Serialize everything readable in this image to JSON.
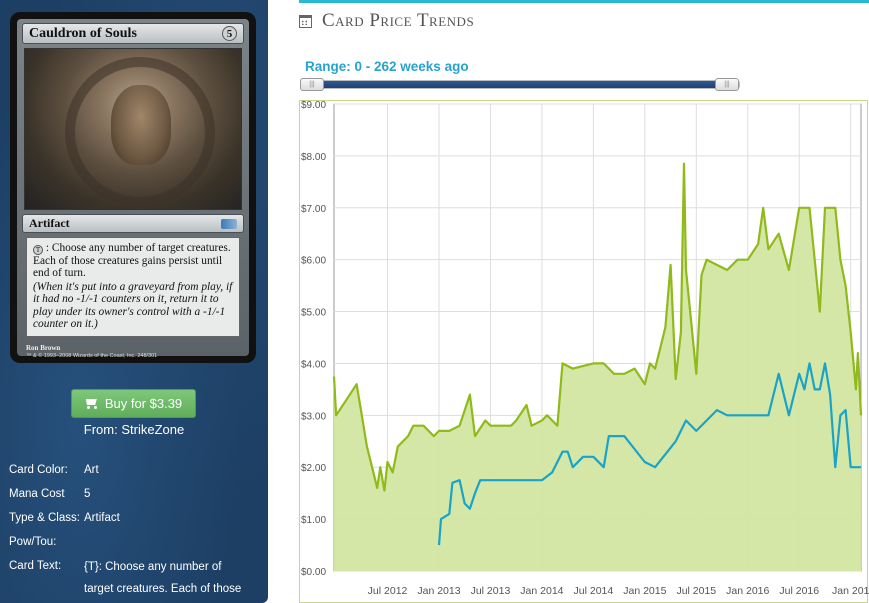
{
  "card": {
    "name": "Cauldron of Souls",
    "mana_cost": "5",
    "type_line": "Artifact",
    "rules_text": ": Choose any number of target creatures. Each of those creatures gains persist until end of turn.",
    "reminder_text": "(When it's put into a graveyard from play, if it had no -1/-1 counters on it, return it to play under its owner's control with a -1/-1 counter on it.)",
    "artist": "Ron Brown",
    "copyright": "™ & © 1993–2008 Wizards of the Coast, Inc. 248/301",
    "tap_symbol": "T"
  },
  "buy": {
    "label": "Buy for $3.39",
    "from": "From: StrikeZone"
  },
  "details": [
    {
      "key": "Card Color:",
      "value": "Art"
    },
    {
      "key": "Mana Cost",
      "value": "5"
    },
    {
      "key": "Type & Class:",
      "value": "Artifact"
    },
    {
      "key": "Pow/Tou:",
      "value": ""
    },
    {
      "key": "Card Text:",
      "value": "{T}: Choose any number of target creatures. Each of those"
    }
  ],
  "trends": {
    "title": "Card Price Trends",
    "range_label": "Range: 0 - 262 weeks ago",
    "range": [
      0,
      262
    ],
    "accent_color": "#27b8d6"
  },
  "chart_data": {
    "type": "line",
    "title": "",
    "ylim": [
      0,
      9
    ],
    "y_ticks": [
      "$0.00",
      "$1.00",
      "$2.00",
      "$3.00",
      "$4.00",
      "$5.00",
      "$6.00",
      "$7.00",
      "$8.00",
      "$9.00"
    ],
    "x_ticks": [
      "Jul 2012",
      "Jan 2013",
      "Jul 2013",
      "Jan 2014",
      "Jul 2014",
      "Jan 2015",
      "Jul 2015",
      "Jan 2016",
      "Jul 2016",
      "Jan 201"
    ],
    "x_tick_values": [
      2012.5,
      2013.0,
      2013.5,
      2014.0,
      2014.5,
      2015.0,
      2015.5,
      2016.0,
      2016.5,
      2017.0
    ],
    "xlim": [
      2011.98,
      2017.1
    ],
    "grid": true,
    "series": [
      {
        "color": "#8fba1a",
        "fill": "#d3e6a1",
        "points": [
          [
            2011.98,
            3.75
          ],
          [
            2012.0,
            3.0
          ],
          [
            2012.1,
            3.3
          ],
          [
            2012.2,
            3.6
          ],
          [
            2012.25,
            3.0
          ],
          [
            2012.3,
            2.4
          ],
          [
            2012.35,
            2.0
          ],
          [
            2012.4,
            1.6
          ],
          [
            2012.43,
            2.0
          ],
          [
            2012.47,
            1.55
          ],
          [
            2012.5,
            2.1
          ],
          [
            2012.55,
            1.9
          ],
          [
            2012.6,
            2.4
          ],
          [
            2012.7,
            2.6
          ],
          [
            2012.75,
            2.8
          ],
          [
            2012.85,
            2.8
          ],
          [
            2012.95,
            2.6
          ],
          [
            2013.0,
            2.7
          ],
          [
            2013.1,
            2.7
          ],
          [
            2013.2,
            2.8
          ],
          [
            2013.3,
            3.4
          ],
          [
            2013.35,
            2.6
          ],
          [
            2013.45,
            2.9
          ],
          [
            2013.5,
            2.8
          ],
          [
            2013.7,
            2.8
          ],
          [
            2013.75,
            2.9
          ],
          [
            2013.85,
            3.2
          ],
          [
            2013.9,
            2.8
          ],
          [
            2014.0,
            2.9
          ],
          [
            2014.05,
            3.0
          ],
          [
            2014.1,
            2.9
          ],
          [
            2014.15,
            2.8
          ],
          [
            2014.2,
            4.0
          ],
          [
            2014.3,
            3.9
          ],
          [
            2014.5,
            4.0
          ],
          [
            2014.6,
            4.0
          ],
          [
            2014.7,
            3.8
          ],
          [
            2014.8,
            3.8
          ],
          [
            2014.9,
            3.9
          ],
          [
            2015.0,
            3.6
          ],
          [
            2015.05,
            4.0
          ],
          [
            2015.1,
            3.9
          ],
          [
            2015.15,
            4.3
          ],
          [
            2015.2,
            4.7
          ],
          [
            2015.25,
            5.9
          ],
          [
            2015.3,
            3.7
          ],
          [
            2015.35,
            4.6
          ],
          [
            2015.38,
            7.85
          ],
          [
            2015.4,
            5.8
          ],
          [
            2015.45,
            4.8
          ],
          [
            2015.5,
            3.8
          ],
          [
            2015.55,
            5.7
          ],
          [
            2015.6,
            6.0
          ],
          [
            2015.7,
            5.9
          ],
          [
            2015.8,
            5.8
          ],
          [
            2015.9,
            6.0
          ],
          [
            2016.0,
            6.0
          ],
          [
            2016.1,
            6.3
          ],
          [
            2016.15,
            7.0
          ],
          [
            2016.2,
            6.2
          ],
          [
            2016.3,
            6.5
          ],
          [
            2016.4,
            5.8
          ],
          [
            2016.5,
            7.0
          ],
          [
            2016.6,
            7.0
          ],
          [
            2016.65,
            6.0
          ],
          [
            2016.7,
            5.0
          ],
          [
            2016.75,
            7.0
          ],
          [
            2016.85,
            7.0
          ],
          [
            2016.9,
            6.0
          ],
          [
            2016.95,
            5.5
          ],
          [
            2017.0,
            4.6
          ],
          [
            2017.05,
            3.5
          ],
          [
            2017.07,
            4.2
          ],
          [
            2017.1,
            3.0
          ]
        ]
      },
      {
        "color": "#1aa3c8",
        "points": [
          [
            2013.0,
            0.5
          ],
          [
            2013.02,
            1.0
          ],
          [
            2013.1,
            1.1
          ],
          [
            2013.13,
            1.7
          ],
          [
            2013.2,
            1.75
          ],
          [
            2013.25,
            1.3
          ],
          [
            2013.3,
            1.2
          ],
          [
            2013.35,
            1.5
          ],
          [
            2013.4,
            1.75
          ],
          [
            2013.6,
            1.75
          ],
          [
            2014.0,
            1.75
          ],
          [
            2014.1,
            1.9
          ],
          [
            2014.2,
            2.3
          ],
          [
            2014.25,
            2.3
          ],
          [
            2014.3,
            2.0
          ],
          [
            2014.4,
            2.2
          ],
          [
            2014.5,
            2.2
          ],
          [
            2014.6,
            2.0
          ],
          [
            2014.65,
            2.6
          ],
          [
            2014.7,
            2.6
          ],
          [
            2014.8,
            2.6
          ],
          [
            2015.0,
            2.1
          ],
          [
            2015.1,
            2.0
          ],
          [
            2015.3,
            2.5
          ],
          [
            2015.4,
            2.9
          ],
          [
            2015.5,
            2.7
          ],
          [
            2015.6,
            2.9
          ],
          [
            2015.7,
            3.1
          ],
          [
            2015.8,
            3.0
          ],
          [
            2016.0,
            3.0
          ],
          [
            2016.2,
            3.0
          ],
          [
            2016.3,
            3.8
          ],
          [
            2016.35,
            3.4
          ],
          [
            2016.4,
            3.0
          ],
          [
            2016.5,
            3.8
          ],
          [
            2016.55,
            3.5
          ],
          [
            2016.6,
            4.0
          ],
          [
            2016.65,
            3.5
          ],
          [
            2016.7,
            3.5
          ],
          [
            2016.75,
            4.0
          ],
          [
            2016.8,
            3.4
          ],
          [
            2016.85,
            2.0
          ],
          [
            2016.9,
            3.0
          ],
          [
            2016.95,
            3.1
          ],
          [
            2017.0,
            2.0
          ],
          [
            2017.1,
            2.0
          ]
        ]
      }
    ]
  }
}
